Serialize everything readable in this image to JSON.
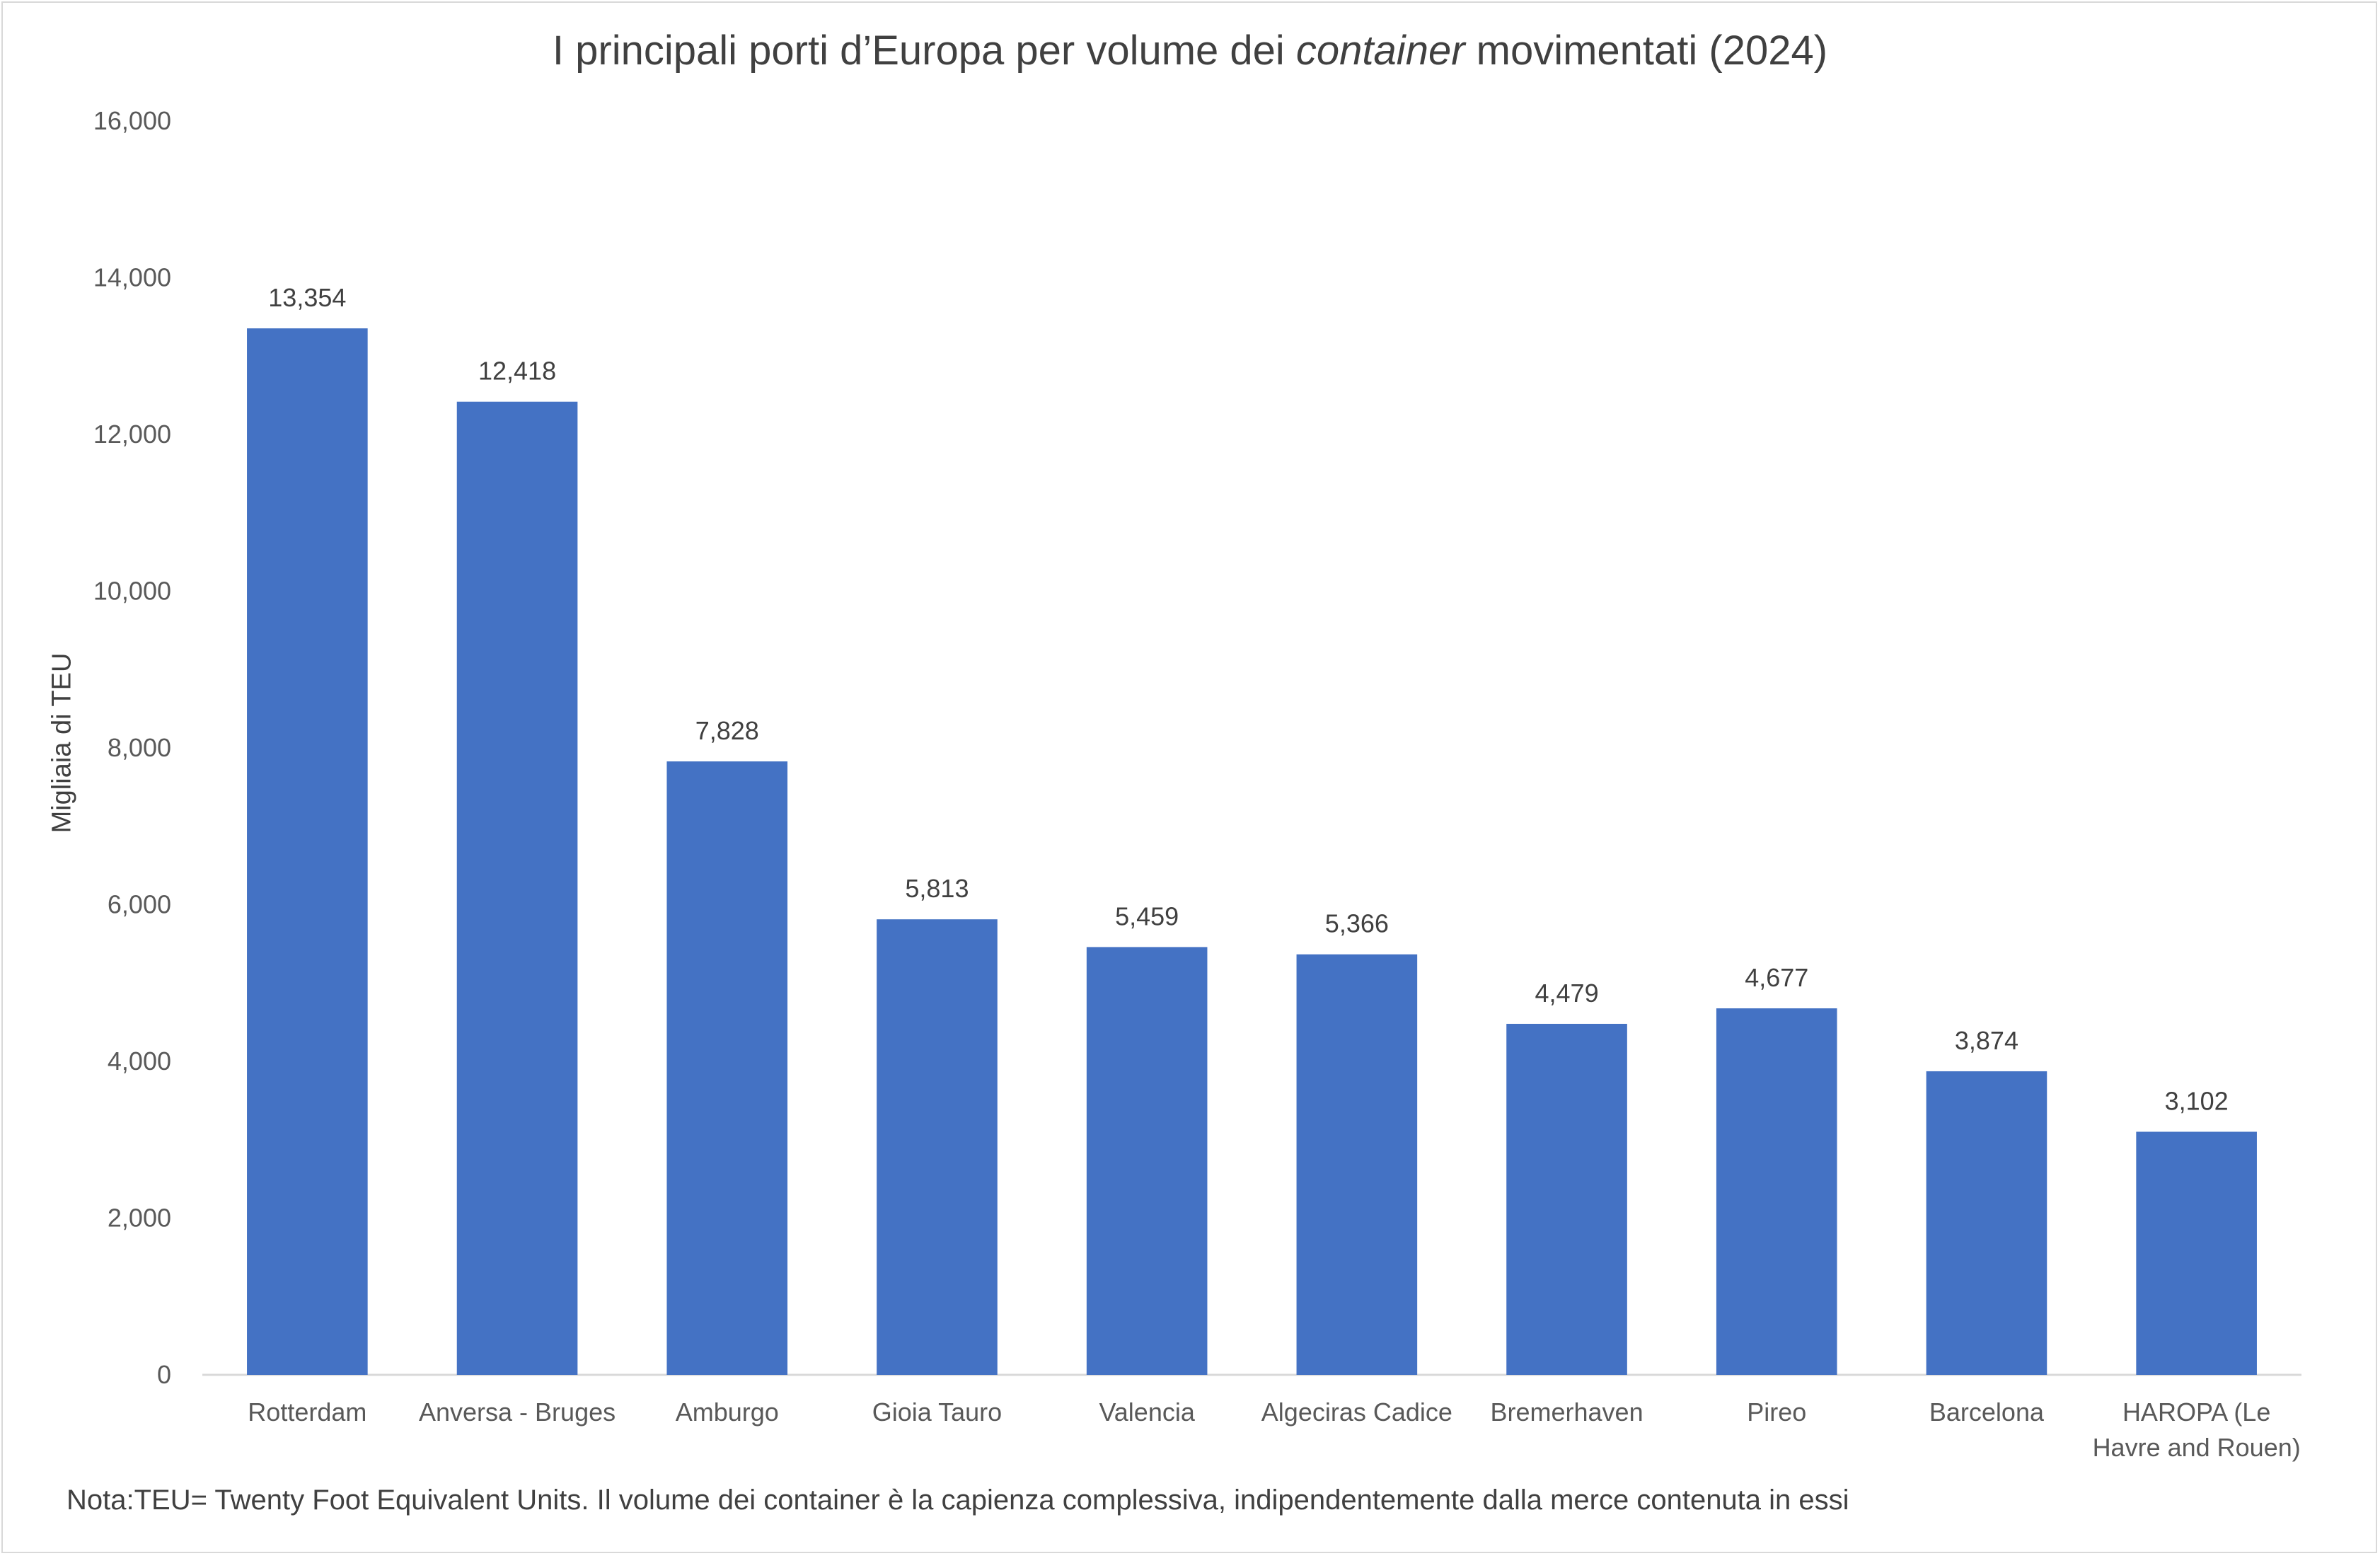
{
  "title_prefix": "I principali porti d’Europa per volume dei ",
  "title_italic": "container",
  "title_suffix": " movimentati (2024)",
  "note": "Nota:TEU= Twenty Foot Equivalent Units. Il volume dei container è la capienza complessiva, indipendentemente dalla merce contenuta in essi",
  "chart_data": {
    "type": "bar",
    "title": "I principali porti d’Europa per volume dei container movimentati (2024)",
    "ylabel": "Migliaia di TEU",
    "xlabel": "",
    "ylim": [
      0,
      16000
    ],
    "yticks": [
      0,
      2000,
      4000,
      6000,
      8000,
      10000,
      12000,
      14000,
      16000
    ],
    "ytick_labels": [
      "0",
      "2,000",
      "4,000",
      "6,000",
      "8,000",
      "10,000",
      "12,000",
      "14,000",
      "16,000"
    ],
    "grid": false,
    "legend": "none",
    "bar_color": "#4472c4",
    "categories": [
      [
        "Rotterdam"
      ],
      [
        "Anversa - Bruges"
      ],
      [
        "Amburgo"
      ],
      [
        "Gioia Tauro"
      ],
      [
        "Valencia"
      ],
      [
        "Algeciras Cadice"
      ],
      [
        "Bremerhaven"
      ],
      [
        "Pireo"
      ],
      [
        "Barcelona"
      ],
      [
        "HAROPA (Le",
        "Havre and Rouen)"
      ]
    ],
    "values": [
      13354,
      12418,
      7828,
      5813,
      5459,
      5366,
      4479,
      4677,
      3874,
      3102
    ],
    "value_labels": [
      "13,354",
      "12,418",
      "7,828",
      "5,813",
      "5,459",
      "5,366",
      "4,479",
      "4,677",
      "3,874",
      "3,102"
    ]
  }
}
